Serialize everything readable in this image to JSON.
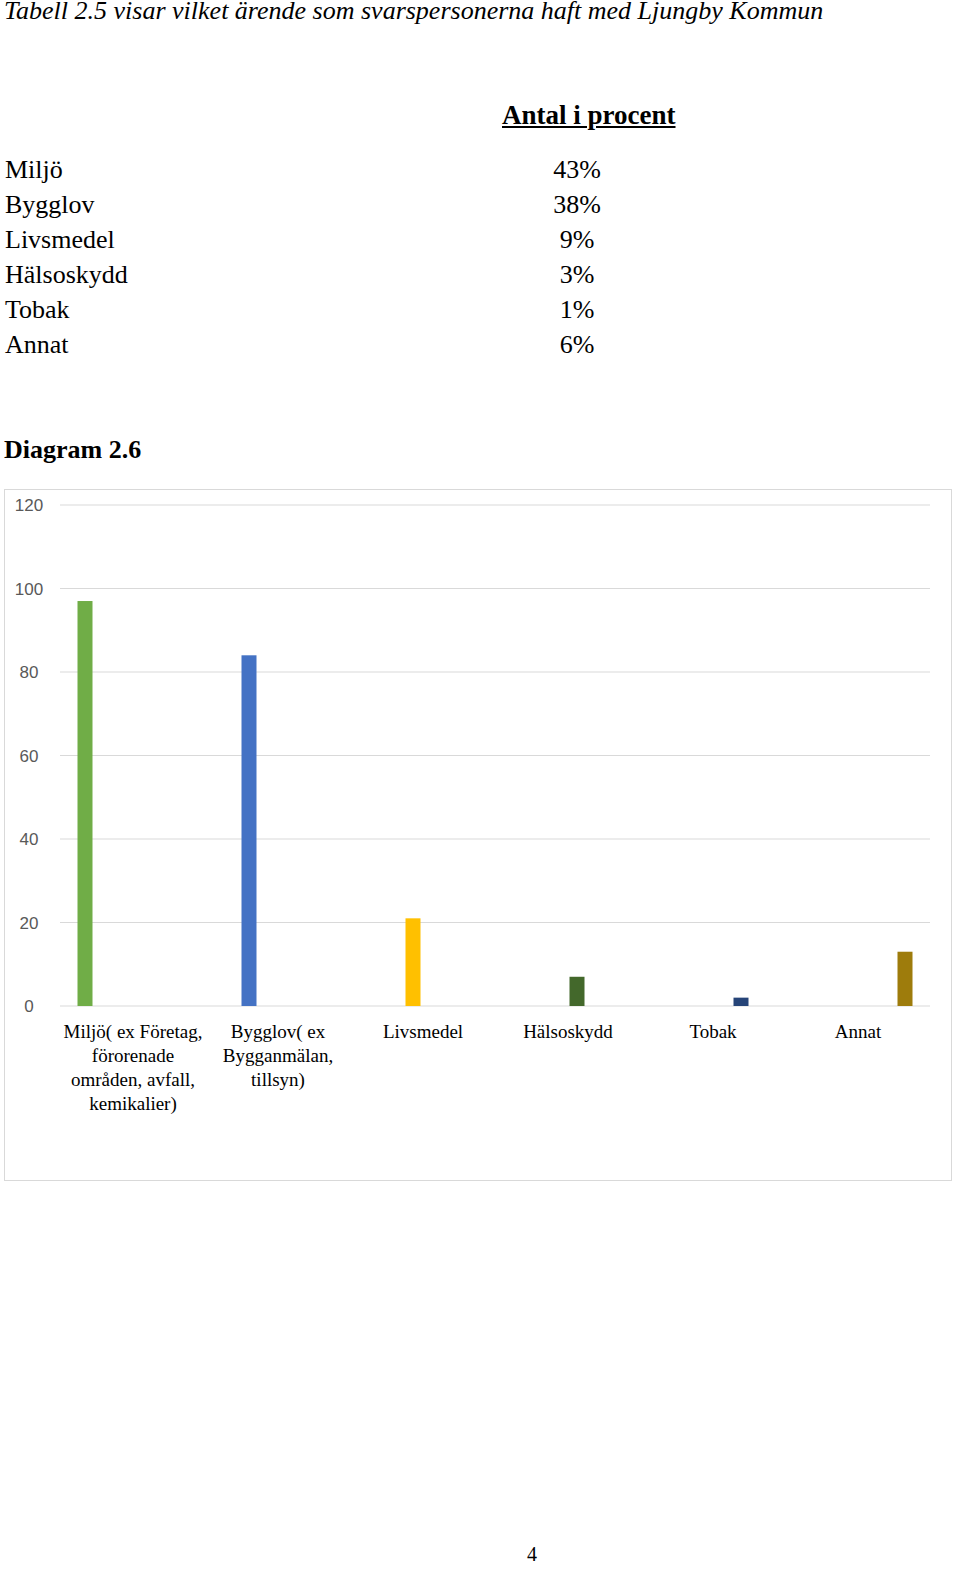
{
  "caption": "Tabell 2.5 visar vilket ärende som svarspersonerna haft med Ljungby Kommun",
  "table": {
    "header": "Antal i procent",
    "rows": [
      [
        "Miljö",
        "43%"
      ],
      [
        "Bygglov",
        "38%"
      ],
      [
        "Livsmedel",
        "9%"
      ],
      [
        "Hälsoskydd",
        "3%"
      ],
      [
        "Tobak",
        "1%"
      ],
      [
        "Annat",
        "6%"
      ]
    ]
  },
  "diagram_title": "Diagram 2.6",
  "chart_data": {
    "type": "bar",
    "categories": [
      "Miljö( ex Företag, förorenade områden, avfall, kemikalier)",
      "Bygglov( ex Bygganmälan, tillsyn)",
      "Livsmedel",
      "Hälsoskydd",
      "Tobak",
      "Annat"
    ],
    "values": [
      97,
      84,
      21,
      7,
      2,
      13
    ],
    "colors": [
      "#70ad47",
      "#4472c4",
      "#ffc000",
      "#43682b",
      "#264478",
      "#9e7c0c"
    ],
    "ylim": [
      0,
      120
    ],
    "yticks": [
      0,
      20,
      40,
      60,
      80,
      100,
      120
    ],
    "grid": true
  },
  "page_number": "4"
}
